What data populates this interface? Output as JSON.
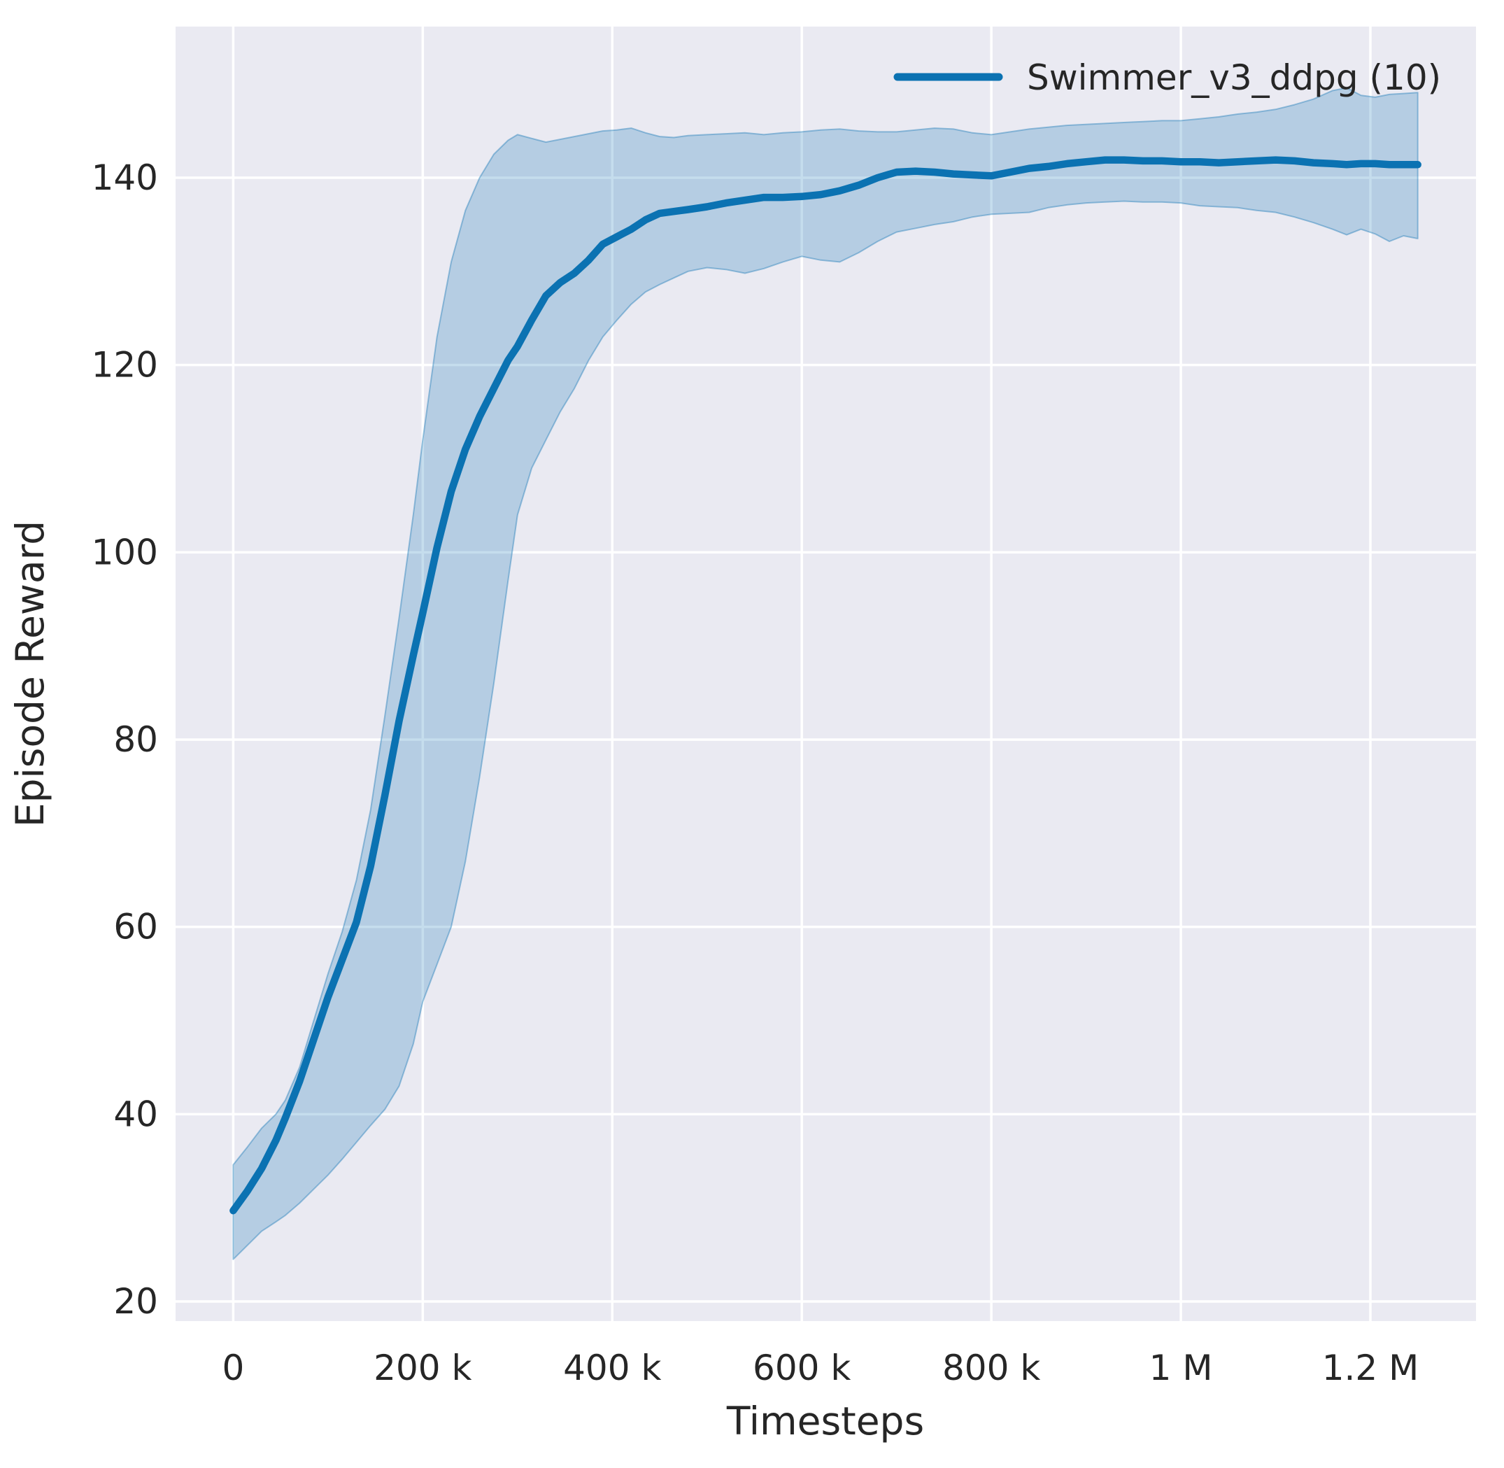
{
  "chart_data": {
    "type": "line",
    "title": "",
    "xlabel": "Timesteps",
    "ylabel": "Episode Reward",
    "grid": true,
    "legend_position": "upper right",
    "legend": [
      {
        "label": "Swimmer_v3_ddpg (10)",
        "color": "#0b72b2"
      }
    ],
    "x_ticks": [
      {
        "value_k": 0,
        "label": "0"
      },
      {
        "value_k": 200,
        "label": "200 k"
      },
      {
        "value_k": 400,
        "label": "400 k"
      },
      {
        "value_k": 600,
        "label": "600 k"
      },
      {
        "value_k": 800,
        "label": "800 k"
      },
      {
        "value_k": 1000,
        "label": "1 M"
      },
      {
        "value_k": 1200,
        "label": "1.2 M"
      }
    ],
    "y_ticks": [
      {
        "value": 20,
        "label": "20"
      },
      {
        "value": 40,
        "label": "40"
      },
      {
        "value": 60,
        "label": "60"
      },
      {
        "value": 80,
        "label": "80"
      },
      {
        "value": 100,
        "label": "100"
      },
      {
        "value": 120,
        "label": "120"
      },
      {
        "value": 140,
        "label": "140"
      }
    ],
    "xlim_k": [
      -60.5,
      1311
    ],
    "ylim": [
      17.9,
      156.1
    ],
    "x_range_k": [
      0,
      1250
    ],
    "point_format": [
      "x_thousand_timesteps",
      "mean_reward",
      "band_lower",
      "band_upper"
    ],
    "series": [
      {
        "name": "Swimmer_v3_ddpg (10)",
        "points": [
          [
            0,
            29.7,
            24.5,
            34.6
          ],
          [
            15,
            31.8,
            26.0,
            36.5
          ],
          [
            30,
            34.2,
            27.5,
            38.5
          ],
          [
            45,
            37.2,
            28.5,
            40.0
          ],
          [
            55,
            39.6,
            29.2,
            41.5
          ],
          [
            70,
            43.5,
            30.5,
            45.0
          ],
          [
            85,
            48.0,
            32.0,
            50.0
          ],
          [
            100,
            52.5,
            33.5,
            55.0
          ],
          [
            115,
            56.5,
            35.2,
            59.5
          ],
          [
            130,
            60.5,
            37.0,
            65.0
          ],
          [
            145,
            66.5,
            38.8,
            72.5
          ],
          [
            160,
            74.0,
            40.5,
            82.5
          ],
          [
            175,
            82.0,
            43.0,
            93.0
          ],
          [
            190,
            89.0,
            47.5,
            104.0
          ],
          [
            200,
            93.5,
            52.0,
            112.0
          ],
          [
            215,
            100.5,
            56.0,
            123.0
          ],
          [
            230,
            106.5,
            60.0,
            131.0
          ],
          [
            245,
            111.0,
            67.0,
            136.5
          ],
          [
            260,
            114.5,
            76.0,
            140.0
          ],
          [
            275,
            117.5,
            86.0,
            142.5
          ],
          [
            290,
            120.5,
            97.0,
            144.0
          ],
          [
            300,
            122.0,
            104.0,
            144.6
          ],
          [
            315,
            124.8,
            109.0,
            144.2
          ],
          [
            330,
            127.4,
            112.0,
            143.8
          ],
          [
            345,
            128.8,
            115.0,
            144.1
          ],
          [
            360,
            129.8,
            117.5,
            144.4
          ],
          [
            375,
            131.2,
            120.5,
            144.7
          ],
          [
            390,
            132.9,
            123.0,
            145.0
          ],
          [
            405,
            133.7,
            124.8,
            145.1
          ],
          [
            420,
            134.5,
            126.5,
            145.3
          ],
          [
            435,
            135.5,
            127.8,
            144.8
          ],
          [
            450,
            136.2,
            128.6,
            144.4
          ],
          [
            465,
            136.4,
            129.3,
            144.3
          ],
          [
            480,
            136.6,
            130.0,
            144.5
          ],
          [
            500,
            136.9,
            130.4,
            144.6
          ],
          [
            520,
            137.3,
            130.2,
            144.7
          ],
          [
            540,
            137.6,
            129.8,
            144.8
          ],
          [
            560,
            137.9,
            130.3,
            144.6
          ],
          [
            580,
            137.9,
            131.0,
            144.8
          ],
          [
            600,
            138.0,
            131.6,
            144.9
          ],
          [
            620,
            138.2,
            131.2,
            145.1
          ],
          [
            640,
            138.6,
            131.0,
            145.2
          ],
          [
            660,
            139.2,
            132.0,
            145.0
          ],
          [
            680,
            140.0,
            133.2,
            144.9
          ],
          [
            700,
            140.6,
            134.2,
            144.9
          ],
          [
            720,
            140.7,
            134.6,
            145.1
          ],
          [
            740,
            140.6,
            135.0,
            145.3
          ],
          [
            760,
            140.4,
            135.3,
            145.2
          ],
          [
            780,
            140.3,
            135.8,
            144.8
          ],
          [
            800,
            140.2,
            136.1,
            144.6
          ],
          [
            820,
            140.6,
            136.2,
            144.9
          ],
          [
            840,
            141.0,
            136.3,
            145.2
          ],
          [
            860,
            141.2,
            136.8,
            145.4
          ],
          [
            880,
            141.5,
            137.1,
            145.6
          ],
          [
            900,
            141.7,
            137.3,
            145.7
          ],
          [
            920,
            141.9,
            137.4,
            145.8
          ],
          [
            940,
            141.9,
            137.5,
            145.9
          ],
          [
            960,
            141.8,
            137.4,
            146.0
          ],
          [
            980,
            141.8,
            137.4,
            146.1
          ],
          [
            1000,
            141.7,
            137.3,
            146.1
          ],
          [
            1020,
            141.7,
            137.0,
            146.3
          ],
          [
            1040,
            141.6,
            136.9,
            146.5
          ],
          [
            1060,
            141.7,
            136.8,
            146.8
          ],
          [
            1080,
            141.8,
            136.5,
            147.0
          ],
          [
            1100,
            141.9,
            136.3,
            147.3
          ],
          [
            1120,
            141.8,
            135.8,
            147.8
          ],
          [
            1140,
            141.6,
            135.2,
            148.4
          ],
          [
            1160,
            141.5,
            134.5,
            149.3
          ],
          [
            1175,
            141.4,
            133.9,
            149.6
          ],
          [
            1190,
            141.5,
            134.5,
            148.8
          ],
          [
            1205,
            141.5,
            134.0,
            148.6
          ],
          [
            1220,
            141.4,
            133.2,
            148.9
          ],
          [
            1235,
            141.4,
            133.8,
            149.0
          ],
          [
            1250,
            141.4,
            133.5,
            149.1
          ]
        ]
      }
    ]
  },
  "colors": {
    "figure_background": "#ffffff",
    "plot_background": "#eaeaf2",
    "gridline": "#ffffff",
    "line": "#0b72b2",
    "band_fill": "rgba(11,114,178,0.24)",
    "band_edge": "rgba(11,114,178,0.38)",
    "text": "#262626"
  }
}
